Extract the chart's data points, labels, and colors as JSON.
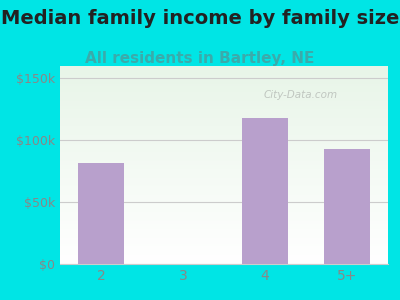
{
  "title": "Median family income by family size",
  "subtitle": "All residents in Bartley, NE",
  "categories": [
    "2",
    "3",
    "4",
    "5+"
  ],
  "values": [
    82000,
    0,
    118000,
    93000
  ],
  "bar_color": "#b8a0cc",
  "outer_bg": "#00e5e5",
  "plot_bg_top": "#e8f5e8",
  "plot_bg_bottom": "#ffffff",
  "title_color": "#222222",
  "subtitle_color": "#3aabab",
  "tick_color": "#888888",
  "yticks": [
    0,
    50000,
    100000,
    150000
  ],
  "ytick_labels": [
    "$0",
    "$50k",
    "$100k",
    "$150k"
  ],
  "ylim": [
    0,
    160000
  ],
  "watermark": "City-Data.com",
  "title_fontsize": 14,
  "subtitle_fontsize": 11
}
